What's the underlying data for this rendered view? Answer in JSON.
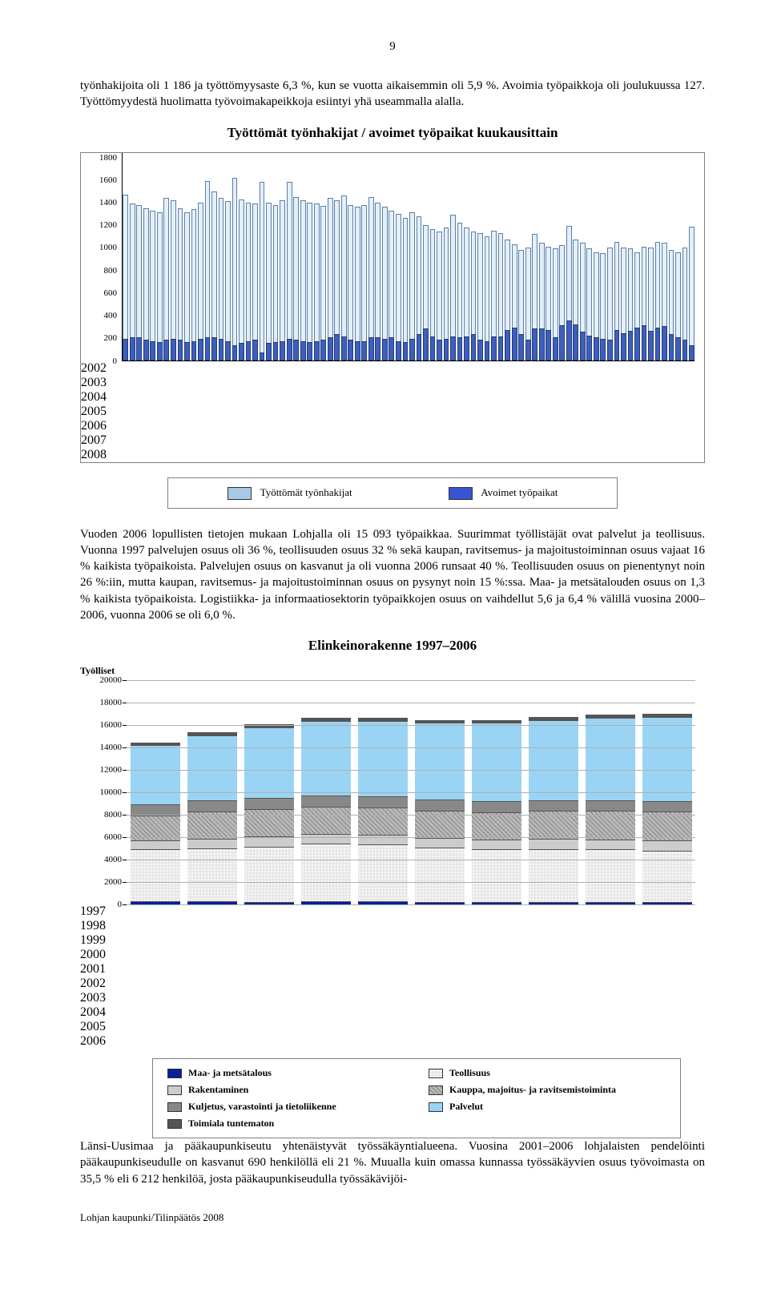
{
  "page_number": "9",
  "paragraphs": {
    "p1": "työnhakijoita oli 1 186 ja työttömyysaste 6,3 %, kun se vuotta aikaisemmin oli 5,9 %. Avoimia työpaikkoja oli joulukuussa 127. Työttömyydestä huolimatta työvoimakapeikkoja esiintyi yhä useammalla alalla.",
    "p2": "Vuoden 2006 lopullisten tietojen mukaan Lohjalla oli 15 093 työpaikkaa. Suurimmat työllistäjät ovat palvelut ja teollisuus. Vuonna 1997 palvelujen osuus oli 36 %, teollisuuden osuus 32 % sekä kaupan, ravitsemus- ja majoitustoiminnan osuus vajaat 16 % kaikista työpaikoista. Palvelujen osuus on kasvanut ja oli vuonna 2006 runsaat 40 %. Teollisuuden osuus on pienentynyt noin 26 %:iin, mutta kaupan, ravitsemus- ja majoitustoiminnan osuus on pysynyt noin 15 %:ssa. Maa- ja metsätalouden osuus on 1,3 % kaikista työpaikoista. Logistiikka- ja informaatiosektorin työpaikkojen osuus on vaihdellut 5,6 ja 6,4 % välillä vuosina 2000–2006, vuonna 2006 se oli 6,0 %.",
    "p3": "Länsi-Uusimaa ja pääkaupunkiseutu yhtenäistyvät työssäkäyntialueena. Vuosina 2001–2006 lohjalaisten pendelöinti pääkaupunkiseudulle on kasvanut 690 henkilöllä eli 21 %. Muualla kuin omassa kunnassa työssäkäyvien osuus työvoimasta on 35,5 % eli 6 212 henkilöä, josta pääkaupunkiseudulla työssäkävijöi-"
  },
  "chart1": {
    "title": "Työttömät työnhakijat / avoimet työpaikat kuukausittain",
    "ymax": 1800,
    "ytick_step": 200,
    "yticks": [
      "0",
      "200",
      "400",
      "600",
      "800",
      "1000",
      "1200",
      "1400",
      "1600",
      "1800"
    ],
    "years": [
      "2002",
      "2003",
      "2004",
      "2005",
      "2006",
      "2007",
      "2008"
    ],
    "unemployed": [
      1470,
      1390,
      1380,
      1350,
      1330,
      1310,
      1440,
      1420,
      1350,
      1310,
      1340,
      1400,
      1590,
      1500,
      1440,
      1410,
      1620,
      1430,
      1400,
      1390,
      1580,
      1400,
      1380,
      1420,
      1580,
      1450,
      1420,
      1400,
      1390,
      1370,
      1440,
      1420,
      1460,
      1380,
      1360,
      1380,
      1450,
      1400,
      1360,
      1330,
      1300,
      1260,
      1310,
      1280,
      1200,
      1160,
      1140,
      1180,
      1290,
      1220,
      1180,
      1140,
      1130,
      1100,
      1150,
      1130,
      1070,
      1030,
      980,
      1000,
      1120,
      1040,
      1010,
      990,
      1020,
      1190,
      1070,
      1040,
      990,
      960,
      950,
      1000,
      1050,
      1000,
      990,
      960,
      1010,
      1000,
      1050,
      1040,
      980,
      960,
      1000,
      1186
    ],
    "vacancies": [
      190,
      200,
      200,
      180,
      170,
      160,
      180,
      190,
      180,
      160,
      170,
      190,
      200,
      200,
      190,
      170,
      130,
      150,
      170,
      180,
      70,
      150,
      160,
      170,
      190,
      180,
      170,
      160,
      165,
      180,
      200,
      230,
      210,
      180,
      170,
      170,
      200,
      200,
      190,
      200,
      170,
      160,
      190,
      230,
      280,
      210,
      180,
      190,
      210,
      200,
      210,
      230,
      180,
      170,
      210,
      210,
      270,
      290,
      230,
      180,
      280,
      280,
      270,
      200,
      310,
      350,
      320,
      250,
      220,
      200,
      190,
      180,
      270,
      240,
      260,
      290,
      310,
      260,
      290,
      300,
      230,
      200,
      180,
      130
    ],
    "colors": {
      "unemployed": "#e3eff9",
      "vacancies": "#3d5fbd"
    },
    "legend": [
      {
        "label": "Työttömät työnhakijat",
        "color": "#a9c9e8"
      },
      {
        "label": "Avoimet työpaikat",
        "color": "#3754d1"
      }
    ]
  },
  "chart2": {
    "title": "Elinkeinorakenne 1997–2006",
    "y_axis_title": "Työlliset",
    "ymax": 20000,
    "ytick_step": 2000,
    "yticks": [
      "0",
      "2000",
      "4000",
      "6000",
      "8000",
      "10000",
      "12000",
      "14000",
      "16000",
      "18000",
      "20000"
    ],
    "categories": [
      "1997",
      "1998",
      "1999",
      "2000",
      "2001",
      "2002",
      "2003",
      "2004",
      "2005",
      "2006"
    ],
    "series_order": [
      "maa",
      "teoll",
      "rak",
      "kauppa",
      "kulj",
      "palv",
      "tunt"
    ],
    "stacks": [
      {
        "maa": 260,
        "teoll": 4650,
        "rak": 800,
        "kauppa": 2250,
        "kulj": 950,
        "palv": 5300,
        "tunt": 250
      },
      {
        "maa": 250,
        "teoll": 4750,
        "rak": 870,
        "kauppa": 2400,
        "kulj": 1000,
        "palv": 5800,
        "tunt": 260
      },
      {
        "maa": 240,
        "teoll": 4900,
        "rak": 900,
        "kauppa": 2450,
        "kulj": 1000,
        "palv": 6300,
        "tunt": 270
      },
      {
        "maa": 280,
        "teoll": 5150,
        "rak": 890,
        "kauppa": 2400,
        "kulj": 990,
        "palv": 6650,
        "tunt": 280
      },
      {
        "maa": 300,
        "teoll": 5050,
        "rak": 880,
        "kauppa": 2400,
        "kulj": 1000,
        "palv": 6750,
        "tunt": 280
      },
      {
        "maa": 230,
        "teoll": 4850,
        "rak": 870,
        "kauppa": 2400,
        "kulj": 980,
        "palv": 6850,
        "tunt": 280
      },
      {
        "maa": 210,
        "teoll": 4700,
        "rak": 860,
        "kauppa": 2450,
        "kulj": 970,
        "palv": 7000,
        "tunt": 270
      },
      {
        "maa": 205,
        "teoll": 4750,
        "rak": 870,
        "kauppa": 2500,
        "kulj": 960,
        "palv": 7150,
        "tunt": 270
      },
      {
        "maa": 200,
        "teoll": 4700,
        "rak": 880,
        "kauppa": 2550,
        "kulj": 950,
        "palv": 7350,
        "tunt": 270
      },
      {
        "maa": 195,
        "teoll": 4600,
        "rak": 890,
        "kauppa": 2600,
        "kulj": 950,
        "palv": 7500,
        "tunt": 270
      }
    ],
    "colors": {
      "maa": "#0a1e9e",
      "teoll_base": "#e8e8e8",
      "rak": "#cccccc",
      "kauppa_base": "#b8b8b8",
      "kulj": "#888888",
      "palv": "#9ad4f5",
      "tunt": "#555555"
    },
    "legend": [
      {
        "label": "Maa- ja metsätalous",
        "cls": "pat-maa"
      },
      {
        "label": "Teollisuus",
        "cls": "pat-teoll"
      },
      {
        "label": "Rakentaminen",
        "cls": "pat-rak"
      },
      {
        "label": "Kauppa, majoitus- ja ravitsemistoiminta",
        "cls": "pat-kauppa"
      },
      {
        "label": "Kuljetus, varastointi ja tietoliikenne",
        "cls": "pat-kulj"
      },
      {
        "label": "Palvelut",
        "cls": "pat-palv"
      },
      {
        "label": "Toimiala tuntematon",
        "cls": "pat-tunt"
      }
    ]
  },
  "footer": "Lohjan kaupunki/Tilinpäätös 2008"
}
